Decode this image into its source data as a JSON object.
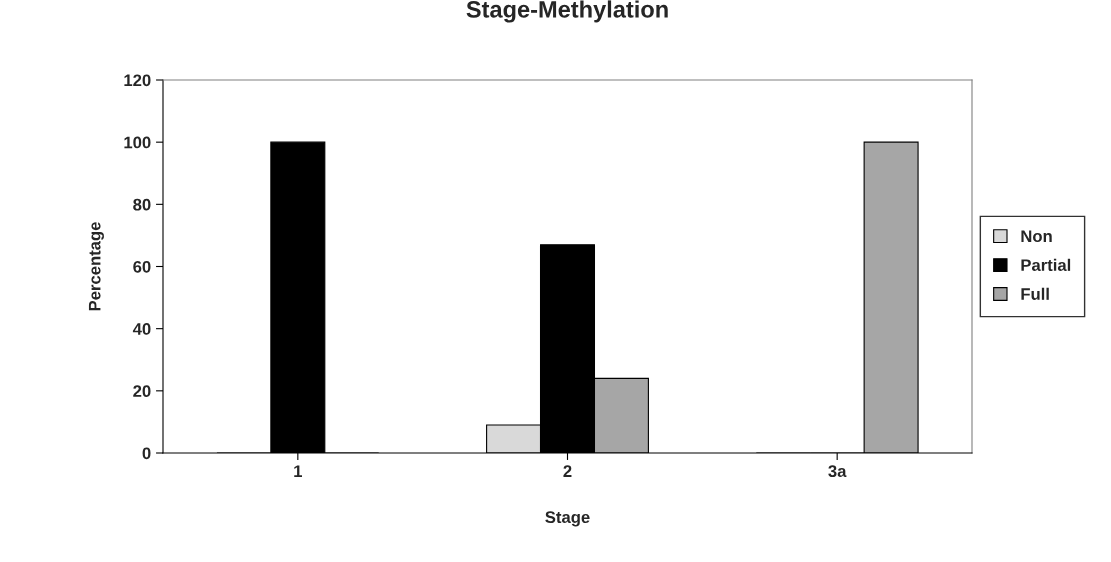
{
  "chart_data": {
    "type": "bar",
    "title": "Stage-Methylation",
    "xlabel": "Stage",
    "ylabel": "Percentage",
    "categories": [
      "1",
      "2",
      "3a"
    ],
    "series": [
      {
        "name": "Non",
        "color": "#d9d9d9",
        "values": [
          0,
          9,
          0
        ]
      },
      {
        "name": "Partial",
        "color": "#000000",
        "values": [
          100,
          67,
          0
        ]
      },
      {
        "name": "Full",
        "color": "#a6a6a6",
        "values": [
          0,
          24,
          100
        ]
      }
    ],
    "ylim": [
      0,
      120
    ],
    "yticks": [
      0,
      20,
      40,
      60,
      80,
      100,
      120
    ],
    "grid": false,
    "legend": "right"
  }
}
